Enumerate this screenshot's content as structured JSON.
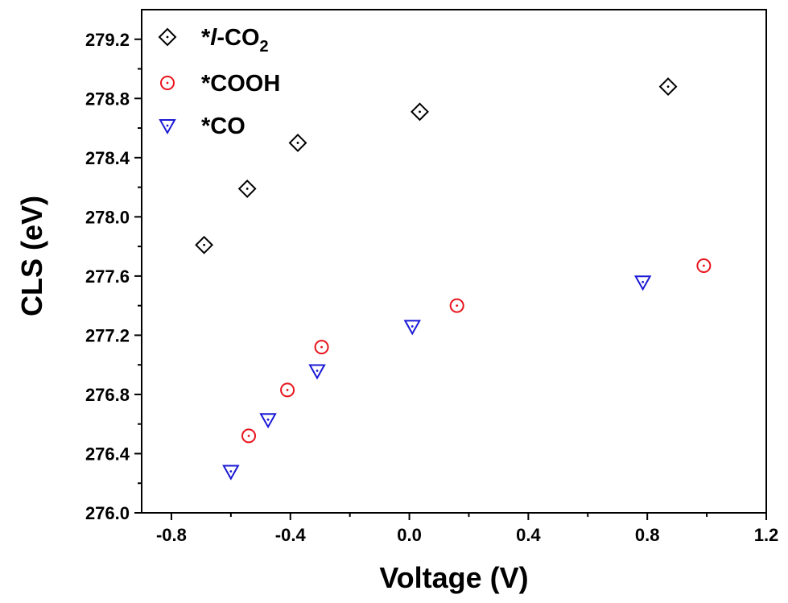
{
  "chart_data": {
    "type": "scatter",
    "title": "",
    "xlabel": "Voltage (V)",
    "ylabel": "CLS (eV)",
    "xlim": [
      -0.9,
      1.2
    ],
    "ylim": [
      276.0,
      279.4
    ],
    "x_ticks": [
      "-0.8",
      "-0.4",
      "0.0",
      "0.4",
      "0.8",
      "1.2"
    ],
    "y_ticks": [
      "276.0",
      "276.4",
      "276.8",
      "277.2",
      "277.6",
      "278.0",
      "278.4",
      "278.8",
      "279.2"
    ],
    "grid": false,
    "legend_position": "top-left",
    "series": [
      {
        "name": "*l-CO2",
        "legend_prefix": "*",
        "legend_italic": "l",
        "legend_main": "-CO",
        "legend_sub": "2",
        "marker": "diamond",
        "color": "#000000",
        "points": [
          {
            "x": -0.69,
            "y": 277.81
          },
          {
            "x": -0.545,
            "y": 278.19
          },
          {
            "x": -0.375,
            "y": 278.5
          },
          {
            "x": 0.035,
            "y": 278.71
          },
          {
            "x": 0.87,
            "y": 278.88
          }
        ]
      },
      {
        "name": "*COOH",
        "marker": "circle",
        "color": "#e8141c",
        "points": [
          {
            "x": -0.54,
            "y": 276.52
          },
          {
            "x": -0.41,
            "y": 276.83
          },
          {
            "x": -0.295,
            "y": 277.12
          },
          {
            "x": 0.16,
            "y": 277.4
          },
          {
            "x": 0.99,
            "y": 277.67
          }
        ]
      },
      {
        "name": "*CO",
        "marker": "triangle-down",
        "color": "#1a1ad6",
        "points": [
          {
            "x": -0.6,
            "y": 276.28
          },
          {
            "x": -0.475,
            "y": 276.63
          },
          {
            "x": -0.31,
            "y": 276.96
          },
          {
            "x": 0.01,
            "y": 277.26
          },
          {
            "x": 0.785,
            "y": 277.56
          }
        ]
      }
    ]
  }
}
